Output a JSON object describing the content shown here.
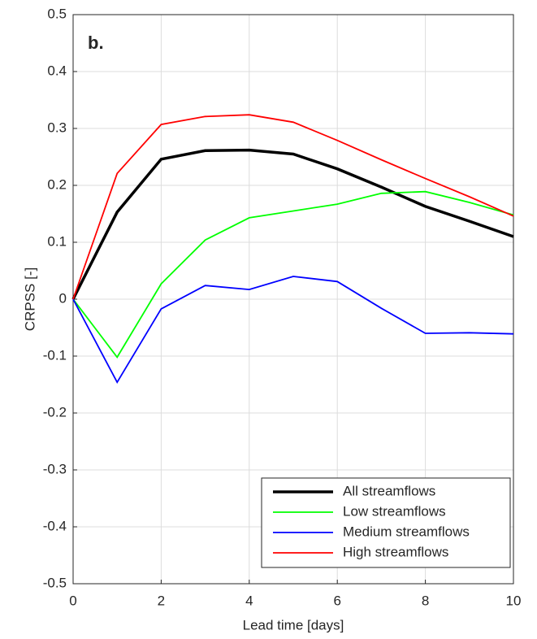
{
  "chart_data": {
    "type": "line",
    "annotation": "b.",
    "x_label": "Lead time [days]",
    "y_label": "CRPSS [-]",
    "x": [
      0,
      1,
      2,
      3,
      4,
      5,
      6,
      7,
      8,
      9,
      10
    ],
    "series": [
      {
        "name": "All streamflows",
        "color": "#000000",
        "values": [
          0,
          0.153,
          0.246,
          0.261,
          0.262,
          0.255,
          0.229,
          0.197,
          0.163,
          0.137,
          0.11
        ]
      },
      {
        "name": "Low streamflows",
        "color": "#00ff00",
        "values": [
          0,
          -0.102,
          0.027,
          0.104,
          0.143,
          0.155,
          0.167,
          0.186,
          0.189,
          0.17,
          0.148
        ]
      },
      {
        "name": "Medium streamflows",
        "color": "#0000ff",
        "values": [
          0,
          -0.146,
          -0.017,
          0.024,
          0.017,
          0.04,
          0.031,
          -0.016,
          -0.06,
          -0.059,
          -0.061
        ]
      },
      {
        "name": "High streamflows",
        "color": "#ff0000",
        "values": [
          0,
          0.221,
          0.307,
          0.321,
          0.324,
          0.311,
          0.279,
          0.245,
          0.212,
          0.18,
          0.146
        ]
      }
    ],
    "xlim": [
      0,
      10
    ],
    "xticks": [
      0,
      2,
      4,
      6,
      8,
      10
    ],
    "ylim": [
      -0.5,
      0.5
    ],
    "yticks": [
      -0.5,
      -0.4,
      -0.3,
      -0.2,
      -0.1,
      0,
      0.1,
      0.2,
      0.3,
      0.4,
      0.5
    ],
    "grid": true,
    "legend": "lower right"
  }
}
